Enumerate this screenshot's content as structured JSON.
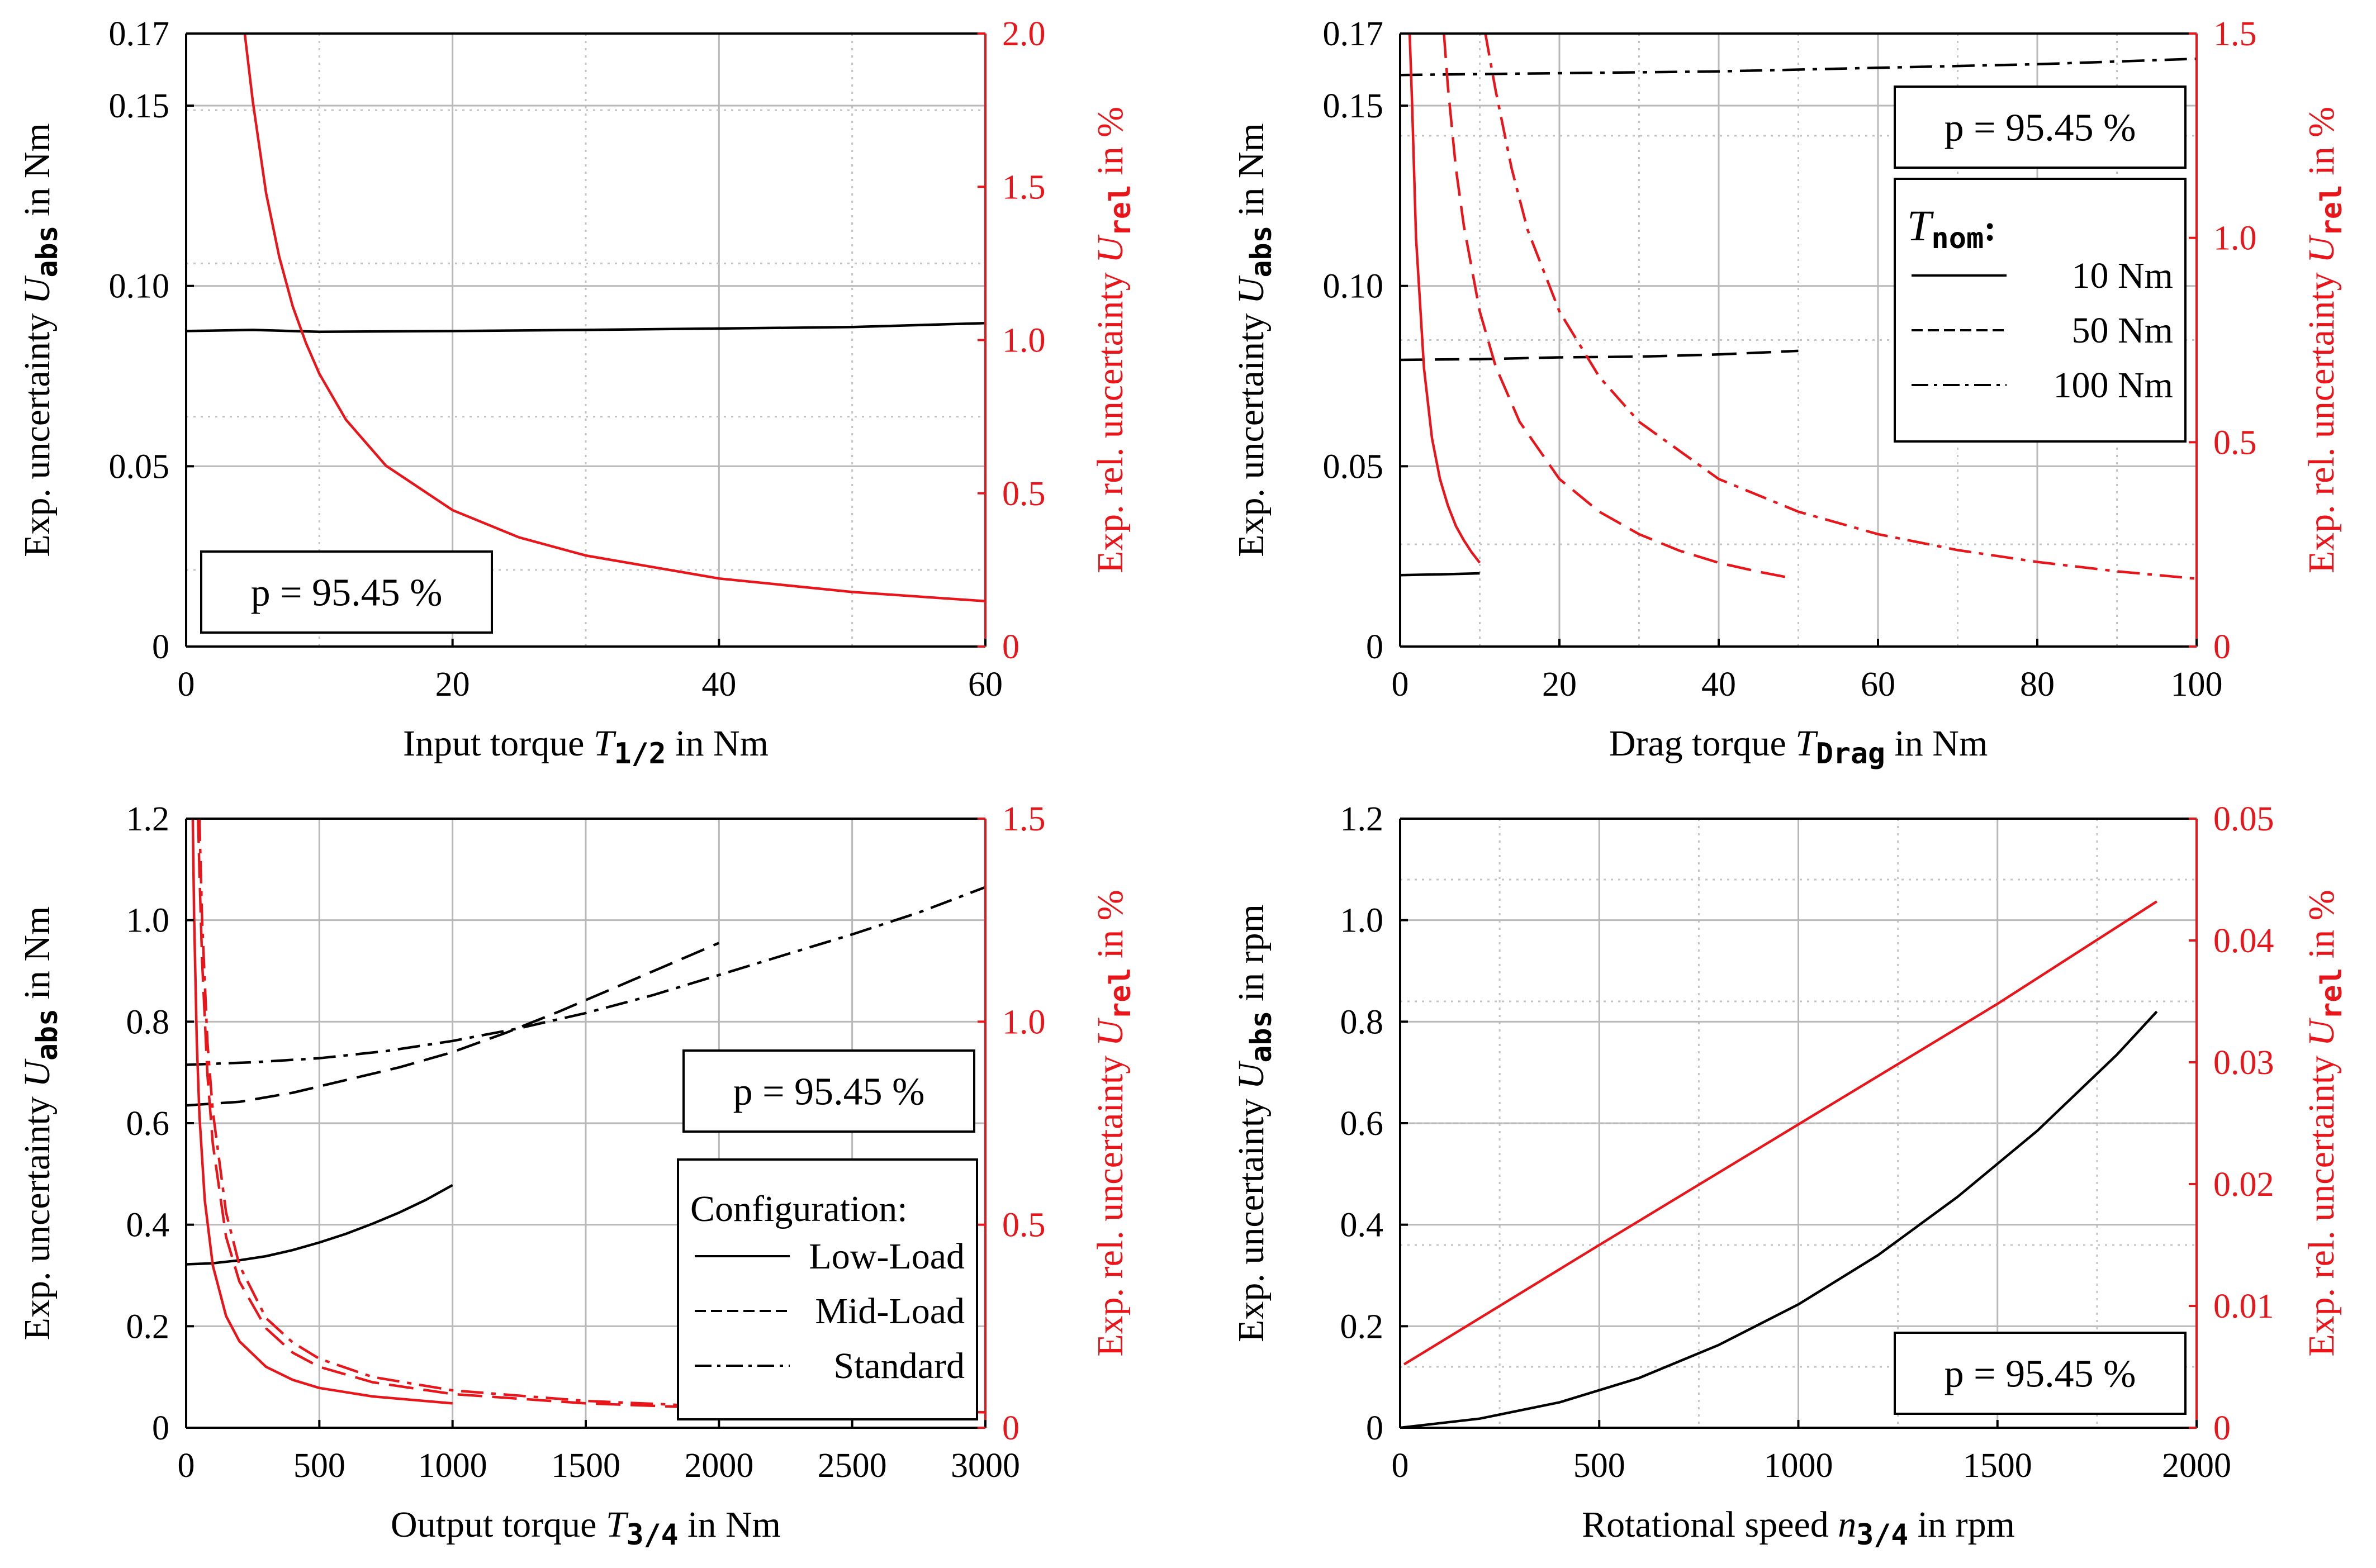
{
  "colors": {
    "black": "#000000",
    "red": "#e8151b"
  },
  "chart_data": [
    {
      "id": "input",
      "type": "line",
      "xlabel": "Input torque T_{1/2} in Nm",
      "xlabel_parts": [
        "Input torque ",
        "T",
        "1/2",
        " in Nm"
      ],
      "ylabel_left_parts": [
        "Exp. uncertainty ",
        "U",
        "abs",
        " in Nm"
      ],
      "ylabel_right_parts": [
        "Exp. rel. uncertainty ",
        "U",
        "rel",
        " in %"
      ],
      "xlim": [
        0,
        60
      ],
      "ylim_left": [
        0,
        0.17
      ],
      "ylim_right": [
        0,
        2.0
      ],
      "xticks": [
        0,
        20,
        40,
        60
      ],
      "xtick_labels": [
        "0",
        "20",
        "40",
        "60"
      ],
      "yticks_left": [
        0,
        0.05,
        0.1,
        0.15,
        0.17
      ],
      "ytick_labels_left": [
        "0",
        "0.05",
        "0.10",
        "0.15",
        "0.17"
      ],
      "yticks_right": [
        0,
        0.5,
        1.0,
        1.5,
        2.0
      ],
      "ytick_labels_right": [
        "0",
        "0.5",
        "1.0",
        "1.5",
        "2.0"
      ],
      "grid_minor_y_right": [
        0.25,
        0.75,
        1.25,
        1.75
      ],
      "grid_minor_x": [
        10,
        30,
        50
      ],
      "annotation": "p = 95.45 %",
      "annotation_pos": "bottom-left",
      "legend": null,
      "series": [
        {
          "axis": "left",
          "color": "black",
          "style": "solid",
          "x": [
            0,
            5,
            10,
            20,
            30,
            40,
            50,
            60
          ],
          "y": [
            0.0875,
            0.0878,
            0.0873,
            0.0875,
            0.0878,
            0.0882,
            0.0886,
            0.0897
          ]
        },
        {
          "axis": "right",
          "color": "red",
          "style": "solid",
          "x": [
            4.4,
            5,
            6,
            7,
            8,
            9,
            10,
            12,
            15,
            20,
            25,
            30,
            40,
            50,
            60
          ],
          "y": [
            2.0,
            1.78,
            1.48,
            1.27,
            1.11,
            0.99,
            0.89,
            0.74,
            0.59,
            0.445,
            0.356,
            0.297,
            0.222,
            0.178,
            0.148
          ]
        }
      ]
    },
    {
      "id": "drag",
      "type": "line",
      "xlabel": "Drag torque T_{Drag} in Nm",
      "xlabel_parts": [
        "Drag torque ",
        "T",
        "Drag",
        " in Nm"
      ],
      "ylabel_left_parts": [
        "Exp. uncertainty ",
        "U",
        "abs",
        " in Nm"
      ],
      "ylabel_right_parts": [
        "Exp. rel. uncertainty ",
        "U",
        "rel",
        " in %"
      ],
      "xlim": [
        0,
        100
      ],
      "ylim_left": [
        0,
        0.17
      ],
      "ylim_right": [
        0,
        1.5
      ],
      "xticks": [
        0,
        20,
        40,
        60,
        80,
        100
      ],
      "xtick_labels": [
        "0",
        "20",
        "40",
        "60",
        "80",
        "100"
      ],
      "yticks_left": [
        0,
        0.05,
        0.1,
        0.15,
        0.17
      ],
      "ytick_labels_left": [
        "0",
        "0.05",
        "0.10",
        "0.15",
        "0.17"
      ],
      "yticks_right": [
        0,
        0.5,
        1.0,
        1.5
      ],
      "ytick_labels_right": [
        "0",
        "0.5",
        "1.0",
        "1.5"
      ],
      "grid_minor_y_right": [
        0.25,
        0.75,
        1.25
      ],
      "grid_minor_x": [
        10,
        30,
        50,
        70,
        90
      ],
      "annotation": "p = 95.45 %",
      "annotation_pos": "top-right",
      "legend": {
        "title_parts": [
          "T",
          "nom",
          ":"
        ],
        "position": "right",
        "entries": [
          {
            "label": "10 Nm",
            "style": "solid"
          },
          {
            "label": "50 Nm",
            "style": "dashed"
          },
          {
            "label": "100 Nm",
            "style": "dashdot"
          }
        ]
      },
      "series": [
        {
          "axis": "left",
          "color": "black",
          "style": "solid",
          "x": [
            0,
            5,
            10
          ],
          "y": [
            0.0198,
            0.02,
            0.0203
          ]
        },
        {
          "axis": "left",
          "color": "black",
          "style": "dashed",
          "x": [
            0,
            10,
            20,
            30,
            40,
            50
          ],
          "y": [
            0.0795,
            0.0797,
            0.0802,
            0.0804,
            0.081,
            0.082
          ]
        },
        {
          "axis": "left",
          "color": "black",
          "style": "dashdot",
          "x": [
            0,
            20,
            40,
            60,
            80,
            100
          ],
          "y": [
            0.1585,
            0.159,
            0.1595,
            0.1605,
            0.1615,
            0.163
          ]
        },
        {
          "axis": "right",
          "color": "red",
          "style": "solid",
          "x": [
            1.2,
            1.5,
            2,
            3,
            4,
            5,
            6,
            7,
            8,
            9,
            10
          ],
          "y": [
            1.5,
            1.33,
            1.0,
            0.68,
            0.51,
            0.41,
            0.345,
            0.295,
            0.26,
            0.23,
            0.205
          ]
        },
        {
          "axis": "right",
          "color": "red",
          "style": "dashed",
          "x": [
            5.5,
            6,
            7,
            8,
            10,
            12,
            15,
            20,
            25,
            30,
            35,
            40,
            45,
            49
          ],
          "y": [
            1.5,
            1.37,
            1.17,
            1.03,
            0.82,
            0.685,
            0.55,
            0.41,
            0.33,
            0.275,
            0.235,
            0.205,
            0.183,
            0.168
          ]
        },
        {
          "axis": "right",
          "color": "red",
          "style": "dashdot",
          "x": [
            10.7,
            12,
            14,
            16,
            20,
            25,
            30,
            40,
            50,
            60,
            70,
            80,
            90,
            100
          ],
          "y": [
            1.5,
            1.36,
            1.17,
            1.02,
            0.82,
            0.66,
            0.55,
            0.41,
            0.33,
            0.275,
            0.236,
            0.207,
            0.184,
            0.166
          ]
        }
      ]
    },
    {
      "id": "output",
      "type": "line",
      "xlabel": "Output torque T_{3/4} in Nm",
      "xlabel_parts": [
        "Output torque ",
        "T",
        "3/4",
        " in Nm"
      ],
      "ylabel_left_parts": [
        "Exp. uncertainty ",
        "U",
        "abs",
        " in Nm"
      ],
      "ylabel_right_parts": [
        "Exp. rel. uncertainty ",
        "U",
        "rel",
        " in %"
      ],
      "xlim": [
        0,
        3000
      ],
      "ylim_left": [
        0,
        1.2
      ],
      "ylim_right": [
        0,
        1.5
      ],
      "xticks": [
        0,
        500,
        1000,
        1500,
        2000,
        2500,
        3000
      ],
      "xtick_labels": [
        "0",
        "500",
        "1000",
        "1500",
        "2000",
        "2500",
        "3000"
      ],
      "yticks_left": [
        0,
        0.2,
        0.4,
        0.6,
        0.8,
        1.0,
        1.2
      ],
      "ytick_labels_left": [
        "0",
        "0.2",
        "0.4",
        "0.6",
        "0.8",
        "1.0",
        "1.2"
      ],
      "yticks_right": [
        0,
        0.5,
        1.0,
        1.5
      ],
      "ytick_labels_right": [
        "0",
        "0.5",
        "1.0",
        "1.5"
      ],
      "grid_minor_y_right": [],
      "grid_minor_x": [],
      "annotation": "p = 95.45 %",
      "annotation_pos": "mid-right",
      "legend": {
        "title_parts": [
          "Configuration:"
        ],
        "position": "bottom-right",
        "entries": [
          {
            "label": "Low-Load",
            "style": "solid"
          },
          {
            "label": "Mid-Load",
            "style": "dashed"
          },
          {
            "label": "Standard",
            "style": "dashdot"
          }
        ]
      },
      "series": [
        {
          "axis": "left",
          "color": "black",
          "style": "solid",
          "x": [
            0,
            100,
            200,
            300,
            400,
            500,
            600,
            700,
            800,
            900,
            1000
          ],
          "y": [
            0.322,
            0.324,
            0.33,
            0.338,
            0.35,
            0.365,
            0.382,
            0.402,
            0.424,
            0.449,
            0.478
          ]
        },
        {
          "axis": "left",
          "color": "black",
          "style": "dashed",
          "x": [
            0,
            200,
            400,
            600,
            800,
            1000,
            1200,
            1400,
            1600,
            1800,
            2000
          ],
          "y": [
            0.635,
            0.642,
            0.66,
            0.685,
            0.71,
            0.74,
            0.778,
            0.82,
            0.865,
            0.91,
            0.955
          ]
        },
        {
          "axis": "left",
          "color": "black",
          "style": "dashdot",
          "x": [
            0,
            250,
            500,
            750,
            1000,
            1250,
            1500,
            1750,
            2000,
            2250,
            2500,
            2750,
            3000
          ],
          "y": [
            0.715,
            0.72,
            0.728,
            0.742,
            0.762,
            0.787,
            0.817,
            0.852,
            0.892,
            0.932,
            0.972,
            1.015,
            1.065
          ]
        },
        {
          "axis": "right",
          "color": "red",
          "style": "solid",
          "x": [
            25,
            30,
            40,
            50,
            70,
            100,
            150,
            200,
            300,
            400,
            500,
            700,
            1000
          ],
          "y": [
            1.5,
            1.26,
            0.95,
            0.77,
            0.56,
            0.4,
            0.275,
            0.213,
            0.15,
            0.118,
            0.098,
            0.077,
            0.06
          ]
        },
        {
          "axis": "right",
          "color": "red",
          "style": "dashed",
          "x": [
            45,
            50,
            60,
            80,
            100,
            150,
            200,
            300,
            400,
            500,
            700,
            1000,
            1500,
            2000
          ],
          "y": [
            1.5,
            1.37,
            1.15,
            0.87,
            0.7,
            0.47,
            0.36,
            0.245,
            0.185,
            0.15,
            0.112,
            0.083,
            0.06,
            0.048
          ]
        },
        {
          "axis": "right",
          "color": "red",
          "style": "dashdot",
          "x": [
            50,
            60,
            80,
            100,
            150,
            200,
            300,
            400,
            500,
            700,
            1000,
            1500,
            2000,
            2500,
            3000
          ],
          "y": [
            1.5,
            1.25,
            0.95,
            0.78,
            0.53,
            0.4,
            0.27,
            0.21,
            0.17,
            0.125,
            0.092,
            0.066,
            0.052,
            0.044,
            0.038
          ]
        }
      ]
    },
    {
      "id": "speed",
      "type": "line",
      "xlabel": "Rotational speed n_{3/4} in rpm",
      "xlabel_parts": [
        "Rotational speed ",
        "n",
        "3/4",
        " in rpm"
      ],
      "ylabel_left_parts": [
        "Exp. uncertainty ",
        "U",
        "abs",
        " in rpm"
      ],
      "ylabel_right_parts": [
        "Exp. rel. uncertainty ",
        "U",
        "rel",
        " in %"
      ],
      "xlim": [
        0,
        2000
      ],
      "ylim_left": [
        0,
        1.2
      ],
      "ylim_right": [
        0,
        0.05
      ],
      "xticks": [
        0,
        500,
        1000,
        1500,
        2000
      ],
      "xtick_labels": [
        "0",
        "500",
        "1000",
        "1500",
        "2000"
      ],
      "yticks_left": [
        0,
        0.2,
        0.4,
        0.6,
        0.8,
        1.0,
        1.2
      ],
      "ytick_labels_left": [
        "0",
        "0.2",
        "0.4",
        "0.6",
        "0.8",
        "1.0",
        "1.2"
      ],
      "yticks_right": [
        0,
        0.01,
        0.02,
        0.03,
        0.04,
        0.05
      ],
      "ytick_labels_right": [
        "0",
        "0.01",
        "0.02",
        "0.03",
        "0.04",
        "0.05"
      ],
      "grid_minor_y_right": [
        0.005,
        0.015,
        0.025,
        0.035,
        0.045
      ],
      "grid_minor_x": [
        250,
        750,
        1250,
        1750
      ],
      "annotation": "p = 95.45 %",
      "annotation_pos": "bottom-right",
      "legend": null,
      "series": [
        {
          "axis": "left",
          "color": "black",
          "style": "solid",
          "x": [
            0,
            200,
            400,
            600,
            800,
            1000,
            1200,
            1400,
            1600,
            1800,
            1900
          ],
          "y": [
            0.0,
            0.018,
            0.05,
            0.098,
            0.163,
            0.243,
            0.34,
            0.455,
            0.585,
            0.735,
            0.82
          ]
        },
        {
          "axis": "right",
          "color": "red",
          "style": "solid",
          "x": [
            10,
            500,
            1000,
            1500,
            1900
          ],
          "y": [
            0.0052,
            0.015,
            0.0249,
            0.0348,
            0.0432
          ]
        }
      ]
    }
  ]
}
